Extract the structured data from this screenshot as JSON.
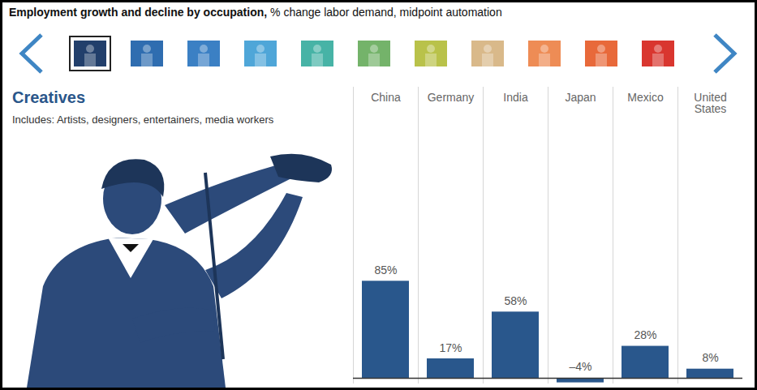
{
  "header": {
    "title": "Employment growth and decline by occupation,",
    "subtitle": "% change labor demand, midpoint automation"
  },
  "chart_data": {
    "type": "bar",
    "title": "Creatives",
    "subtitle": "Includes: Artists, designers, entertainers, media workers",
    "categories": [
      "China",
      "Germany",
      "India",
      "Japan",
      "Mexico",
      "United States"
    ],
    "values": [
      85,
      17,
      58,
      -4,
      28,
      8
    ],
    "value_labels": [
      "85%",
      "17%",
      "58%",
      "–4%",
      "28%",
      "8%"
    ],
    "color": "#29578c",
    "ylim": [
      -5,
      255
    ],
    "yticks": [],
    "data_labels": true,
    "tick_labels": "x",
    "grid": false
  }
}
